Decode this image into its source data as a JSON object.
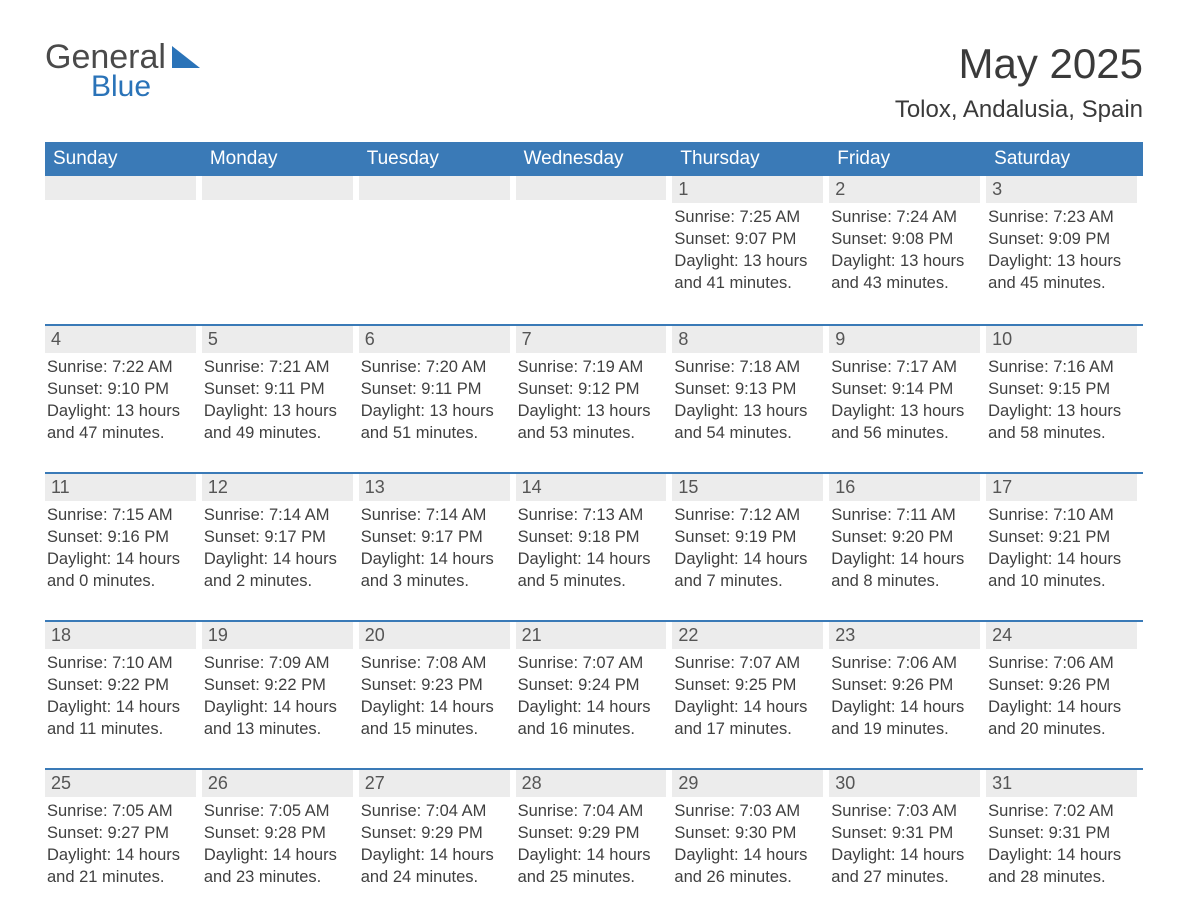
{
  "logo": {
    "top": "General",
    "bottom": "Blue"
  },
  "title": "May 2025",
  "location": "Tolox, Andalusia, Spain",
  "colors": {
    "header_bg": "#3a7ab7",
    "header_text": "#ffffff",
    "divider": "#3a7ab7",
    "daynum_bg": "#ececec",
    "text": "#404040",
    "background": "#ffffff"
  },
  "dow": [
    "Sunday",
    "Monday",
    "Tuesday",
    "Wednesday",
    "Thursday",
    "Friday",
    "Saturday"
  ],
  "weeks": [
    [
      null,
      null,
      null,
      null,
      {
        "n": "1",
        "sunrise": "7:25 AM",
        "sunset": "9:07 PM",
        "dlh": "13",
        "dlm": "41"
      },
      {
        "n": "2",
        "sunrise": "7:24 AM",
        "sunset": "9:08 PM",
        "dlh": "13",
        "dlm": "43"
      },
      {
        "n": "3",
        "sunrise": "7:23 AM",
        "sunset": "9:09 PM",
        "dlh": "13",
        "dlm": "45"
      }
    ],
    [
      {
        "n": "4",
        "sunrise": "7:22 AM",
        "sunset": "9:10 PM",
        "dlh": "13",
        "dlm": "47"
      },
      {
        "n": "5",
        "sunrise": "7:21 AM",
        "sunset": "9:11 PM",
        "dlh": "13",
        "dlm": "49"
      },
      {
        "n": "6",
        "sunrise": "7:20 AM",
        "sunset": "9:11 PM",
        "dlh": "13",
        "dlm": "51"
      },
      {
        "n": "7",
        "sunrise": "7:19 AM",
        "sunset": "9:12 PM",
        "dlh": "13",
        "dlm": "53"
      },
      {
        "n": "8",
        "sunrise": "7:18 AM",
        "sunset": "9:13 PM",
        "dlh": "13",
        "dlm": "54"
      },
      {
        "n": "9",
        "sunrise": "7:17 AM",
        "sunset": "9:14 PM",
        "dlh": "13",
        "dlm": "56"
      },
      {
        "n": "10",
        "sunrise": "7:16 AM",
        "sunset": "9:15 PM",
        "dlh": "13",
        "dlm": "58"
      }
    ],
    [
      {
        "n": "11",
        "sunrise": "7:15 AM",
        "sunset": "9:16 PM",
        "dlh": "14",
        "dlm": "0"
      },
      {
        "n": "12",
        "sunrise": "7:14 AM",
        "sunset": "9:17 PM",
        "dlh": "14",
        "dlm": "2"
      },
      {
        "n": "13",
        "sunrise": "7:14 AM",
        "sunset": "9:17 PM",
        "dlh": "14",
        "dlm": "3"
      },
      {
        "n": "14",
        "sunrise": "7:13 AM",
        "sunset": "9:18 PM",
        "dlh": "14",
        "dlm": "5"
      },
      {
        "n": "15",
        "sunrise": "7:12 AM",
        "sunset": "9:19 PM",
        "dlh": "14",
        "dlm": "7"
      },
      {
        "n": "16",
        "sunrise": "7:11 AM",
        "sunset": "9:20 PM",
        "dlh": "14",
        "dlm": "8"
      },
      {
        "n": "17",
        "sunrise": "7:10 AM",
        "sunset": "9:21 PM",
        "dlh": "14",
        "dlm": "10"
      }
    ],
    [
      {
        "n": "18",
        "sunrise": "7:10 AM",
        "sunset": "9:22 PM",
        "dlh": "14",
        "dlm": "11"
      },
      {
        "n": "19",
        "sunrise": "7:09 AM",
        "sunset": "9:22 PM",
        "dlh": "14",
        "dlm": "13"
      },
      {
        "n": "20",
        "sunrise": "7:08 AM",
        "sunset": "9:23 PM",
        "dlh": "14",
        "dlm": "15"
      },
      {
        "n": "21",
        "sunrise": "7:07 AM",
        "sunset": "9:24 PM",
        "dlh": "14",
        "dlm": "16"
      },
      {
        "n": "22",
        "sunrise": "7:07 AM",
        "sunset": "9:25 PM",
        "dlh": "14",
        "dlm": "17"
      },
      {
        "n": "23",
        "sunrise": "7:06 AM",
        "sunset": "9:26 PM",
        "dlh": "14",
        "dlm": "19"
      },
      {
        "n": "24",
        "sunrise": "7:06 AM",
        "sunset": "9:26 PM",
        "dlh": "14",
        "dlm": "20"
      }
    ],
    [
      {
        "n": "25",
        "sunrise": "7:05 AM",
        "sunset": "9:27 PM",
        "dlh": "14",
        "dlm": "21"
      },
      {
        "n": "26",
        "sunrise": "7:05 AM",
        "sunset": "9:28 PM",
        "dlh": "14",
        "dlm": "23"
      },
      {
        "n": "27",
        "sunrise": "7:04 AM",
        "sunset": "9:29 PM",
        "dlh": "14",
        "dlm": "24"
      },
      {
        "n": "28",
        "sunrise": "7:04 AM",
        "sunset": "9:29 PM",
        "dlh": "14",
        "dlm": "25"
      },
      {
        "n": "29",
        "sunrise": "7:03 AM",
        "sunset": "9:30 PM",
        "dlh": "14",
        "dlm": "26"
      },
      {
        "n": "30",
        "sunrise": "7:03 AM",
        "sunset": "9:31 PM",
        "dlh": "14",
        "dlm": "27"
      },
      {
        "n": "31",
        "sunrise": "7:02 AM",
        "sunset": "9:31 PM",
        "dlh": "14",
        "dlm": "28"
      }
    ]
  ],
  "labels": {
    "sunrise": "Sunrise: ",
    "sunset": "Sunset: ",
    "daylight1": "Daylight: ",
    "hours": " hours",
    "and": "and ",
    "minutes": " minutes."
  }
}
